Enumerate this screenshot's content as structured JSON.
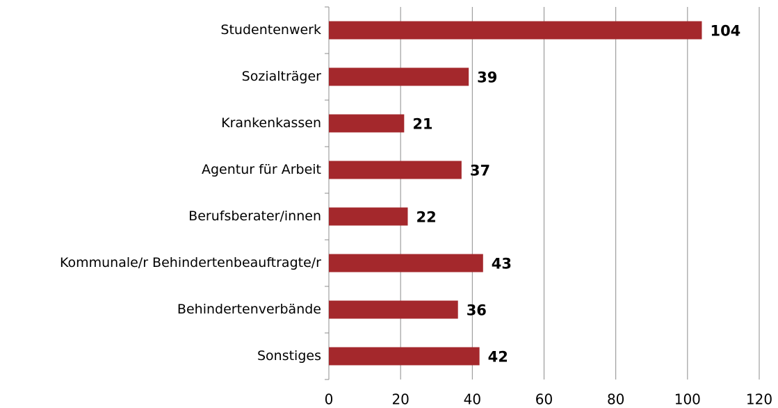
{
  "chart_data": {
    "type": "bar",
    "orientation": "horizontal",
    "categories": [
      "Studentenwerk",
      "Sozialträger",
      "Krankenkassen",
      "Agentur für Arbeit",
      "Berufsberater/innen",
      "Kommunale/r Behindertenbeauftragte/r",
      "Behindertenverbände",
      "Sonstiges"
    ],
    "values": [
      104,
      39,
      21,
      37,
      22,
      43,
      36,
      42
    ],
    "color": "#a4282c",
    "xlim": [
      0,
      120
    ],
    "xticks": [
      0,
      20,
      40,
      60,
      80,
      100,
      120
    ],
    "grid": true
  }
}
